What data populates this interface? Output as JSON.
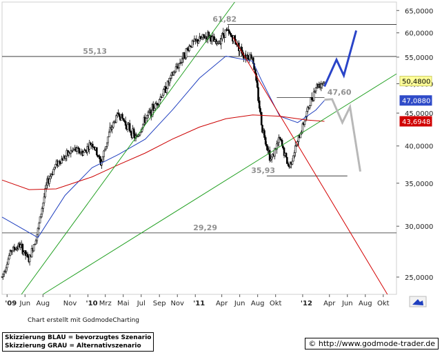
{
  "chart_data": {
    "type": "candlestick",
    "title": "",
    "yscale": "log",
    "ylim": [
      23500,
      67000
    ],
    "y_ticks": [
      "65,0000",
      "60,0000",
      "55,0000",
      "50,0000",
      "45,0000",
      "40,0000",
      "35,0000",
      "30,0000",
      "25,0000"
    ],
    "y_tick_values": [
      65000,
      60000,
      55000,
      50000,
      45000,
      40000,
      35000,
      30000,
      25000
    ],
    "x_ticks": [
      "'09",
      "Jun",
      "Aug",
      "Nov",
      "'10",
      "Mrz",
      "Mai",
      "Jul",
      "Sep",
      "Nov",
      "'11",
      "Apr",
      "Jun",
      "Aug",
      "Okt",
      "'12",
      "Apr",
      "Jun",
      "Aug",
      "Okt"
    ],
    "x_tick_dates": [
      "2009-04-01",
      "2009-06-01",
      "2009-08-01",
      "2009-11-01",
      "2010-01-01",
      "2010-03-01",
      "2010-05-01",
      "2010-07-01",
      "2010-09-01",
      "2010-11-01",
      "2011-01-01",
      "2011-04-01",
      "2011-06-01",
      "2011-08-01",
      "2011-10-01",
      "2012-01-01",
      "2012-04-01",
      "2012-06-01",
      "2012-08-01",
      "2012-10-01"
    ],
    "x_range": [
      "2009-03-15",
      "2012-11-15"
    ],
    "price_path": [
      [
        "2009-03-15",
        25000
      ],
      [
        "2009-04-15",
        27500
      ],
      [
        "2009-05-15",
        28000
      ],
      [
        "2009-06-15",
        26500
      ],
      [
        "2009-07-15",
        29500
      ],
      [
        "2009-08-15",
        35000
      ],
      [
        "2009-09-15",
        37500
      ],
      [
        "2009-10-15",
        38500
      ],
      [
        "2009-11-15",
        39500
      ],
      [
        "2009-12-15",
        39000
      ],
      [
        "2010-01-15",
        40500
      ],
      [
        "2010-02-15",
        37500
      ],
      [
        "2010-03-15",
        42000
      ],
      [
        "2010-04-15",
        45000
      ],
      [
        "2010-05-15",
        43000
      ],
      [
        "2010-06-15",
        41000
      ],
      [
        "2010-07-15",
        44000
      ],
      [
        "2010-08-15",
        46000
      ],
      [
        "2010-09-15",
        48500
      ],
      [
        "2010-10-15",
        51500
      ],
      [
        "2010-11-15",
        54500
      ],
      [
        "2010-12-15",
        57500
      ],
      [
        "2011-01-15",
        58500
      ],
      [
        "2011-02-15",
        59500
      ],
      [
        "2011-03-15",
        57500
      ],
      [
        "2011-04-15",
        60500
      ],
      [
        "2011-05-15",
        58500
      ],
      [
        "2011-06-15",
        55500
      ],
      [
        "2011-07-15",
        55000
      ],
      [
        "2011-08-15",
        43000
      ],
      [
        "2011-09-15",
        38000
      ],
      [
        "2011-10-15",
        41000
      ],
      [
        "2011-11-15",
        37000
      ],
      [
        "2011-12-15",
        40500
      ],
      [
        "2012-01-15",
        45000
      ],
      [
        "2012-02-15",
        49500
      ],
      [
        "2012-03-15",
        50480
      ]
    ],
    "series": [
      {
        "name": "",
        "color": "#1f3fbf",
        "values": [
          [
            "2009-03-15",
            31000
          ],
          [
            "2009-07-15",
            28800
          ],
          [
            "2009-10-15",
            33500
          ],
          [
            "2010-01-15",
            37000
          ],
          [
            "2010-04-15",
            38800
          ],
          [
            "2010-07-15",
            41000
          ],
          [
            "2010-10-15",
            45500
          ],
          [
            "2011-01-15",
            51000
          ],
          [
            "2011-04-15",
            55200
          ],
          [
            "2011-07-15",
            54200
          ],
          [
            "2011-08-15",
            50500
          ],
          [
            "2011-10-15",
            44500
          ],
          [
            "2011-12-15",
            43500
          ],
          [
            "2012-02-15",
            45500
          ],
          [
            "2012-03-15",
            47088
          ]
        ]
      },
      {
        "name": "",
        "color": "#cc0000",
        "values": [
          [
            "2009-03-15",
            35400
          ],
          [
            "2009-06-15",
            34200
          ],
          [
            "2009-09-15",
            34300
          ],
          [
            "2010-01-15",
            35800
          ],
          [
            "2010-04-15",
            37400
          ],
          [
            "2010-07-15",
            39000
          ],
          [
            "2010-10-15",
            41000
          ],
          [
            "2011-01-15",
            42800
          ],
          [
            "2011-04-15",
            44100
          ],
          [
            "2011-07-15",
            44700
          ],
          [
            "2011-10-15",
            44500
          ],
          [
            "2012-01-15",
            43900
          ],
          [
            "2012-03-15",
            43695
          ]
        ]
      }
    ],
    "levels": [
      {
        "label": "61,82",
        "value": 61820
      },
      {
        "label": "55,13",
        "value": 55130
      },
      {
        "label": "47,60",
        "value": 47600
      },
      {
        "label": "35,93",
        "value": 35930
      },
      {
        "label": "29,29",
        "value": 29290
      }
    ],
    "trendlines": [
      {
        "color": "#22a022",
        "from": [
          "2009-05-20",
          23500
        ],
        "to": [
          "2011-05-15",
          67000
        ]
      },
      {
        "color": "#22a022",
        "from": [
          "2009-08-01",
          23500
        ],
        "to": [
          "2012-11-15",
          51800
        ]
      },
      {
        "color": "#d40000",
        "from": [
          "2011-05-10",
          59000
        ],
        "to": [
          "2012-10-15",
          23500
        ]
      }
    ],
    "scenarios": {
      "blau": {
        "color": "#2a44c8",
        "path": [
          [
            "2012-03-15",
            49500
          ],
          [
            "2012-04-25",
            54500
          ],
          [
            "2012-05-20",
            51500
          ],
          [
            "2012-07-01",
            60500
          ]
        ]
      },
      "grau": {
        "color": "#b8b8b8",
        "path": [
          [
            "2012-03-15",
            47200
          ],
          [
            "2012-04-10",
            47300
          ],
          [
            "2012-05-15",
            43500
          ],
          [
            "2012-06-10",
            46000
          ],
          [
            "2012-07-15",
            36500
          ]
        ]
      }
    },
    "last_values": [
      {
        "label": "50,4800",
        "value": 50480,
        "bg": "#ffff99",
        "fg": "#000000",
        "border": "#cccc66"
      },
      {
        "label": "47,0880",
        "value": 47088,
        "bg": "#2f4bc8",
        "fg": "#ffffff",
        "border": "#2f4bc8"
      },
      {
        "label": "43,6948",
        "value": 43695,
        "bg": "#d00000",
        "fg": "#ffffff",
        "border": "#d00000"
      }
    ]
  },
  "footer": {
    "credit": "Chart erstellt mit GodmodeCharting",
    "legend_line1": "Skizzierung BLAU = bevorzugtes Szenario",
    "legend_line2": "Skizzierung GRAU = Alternativszenario",
    "source_symbol": "©",
    "source": "http://www.godmode-trader.de"
  }
}
